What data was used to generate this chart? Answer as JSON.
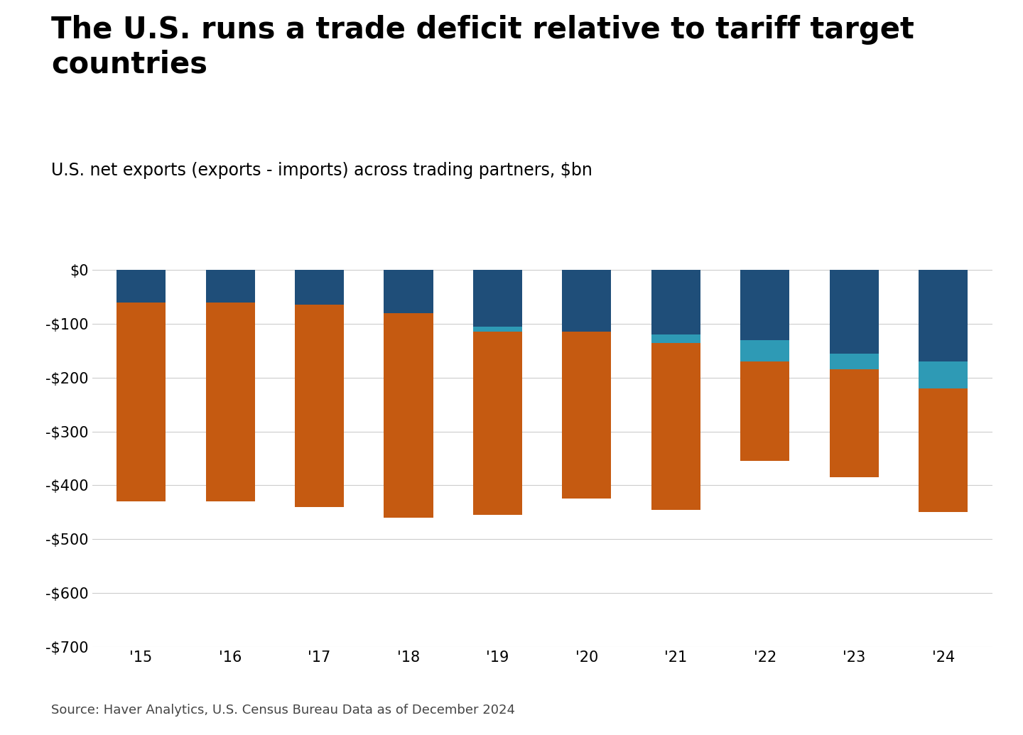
{
  "title": "The U.S. runs a trade deficit relative to tariff target\ncountries",
  "subtitle": "U.S. net exports (exports - imports) across trading partners, $bn",
  "source": "Source: Haver Analytics, U.S. Census Bureau Data as of December 2024",
  "years": [
    "'15",
    "'16",
    "'17",
    "'18",
    "'19",
    "'20",
    "'21",
    "'22",
    "'23",
    "'24"
  ],
  "china": [
    -370,
    -370,
    -375,
    -380,
    -340,
    -310,
    -310,
    -185,
    -200,
    -230
  ],
  "canada": [
    0,
    0,
    0,
    0,
    -10,
    0,
    -15,
    -40,
    -30,
    -50
  ],
  "mexico": [
    -60,
    -60,
    -65,
    -80,
    -105,
    -115,
    -120,
    -130,
    -155,
    -170
  ],
  "china_color": "#C55A11",
  "canada_color": "#2E9AB5",
  "mexico_color": "#1F4E79",
  "ylim": [
    -700,
    10
  ],
  "yticks": [
    0,
    -100,
    -200,
    -300,
    -400,
    -500,
    -600,
    -700
  ],
  "ytick_labels": [
    "$0",
    "-$100",
    "-$200",
    "-$300",
    "-$400",
    "-$500",
    "-$600",
    "-$700"
  ],
  "background_color": "#FFFFFF",
  "grid_color": "#CCCCCC",
  "title_fontsize": 30,
  "subtitle_fontsize": 17,
  "tick_fontsize": 15,
  "legend_fontsize": 16,
  "source_fontsize": 13
}
